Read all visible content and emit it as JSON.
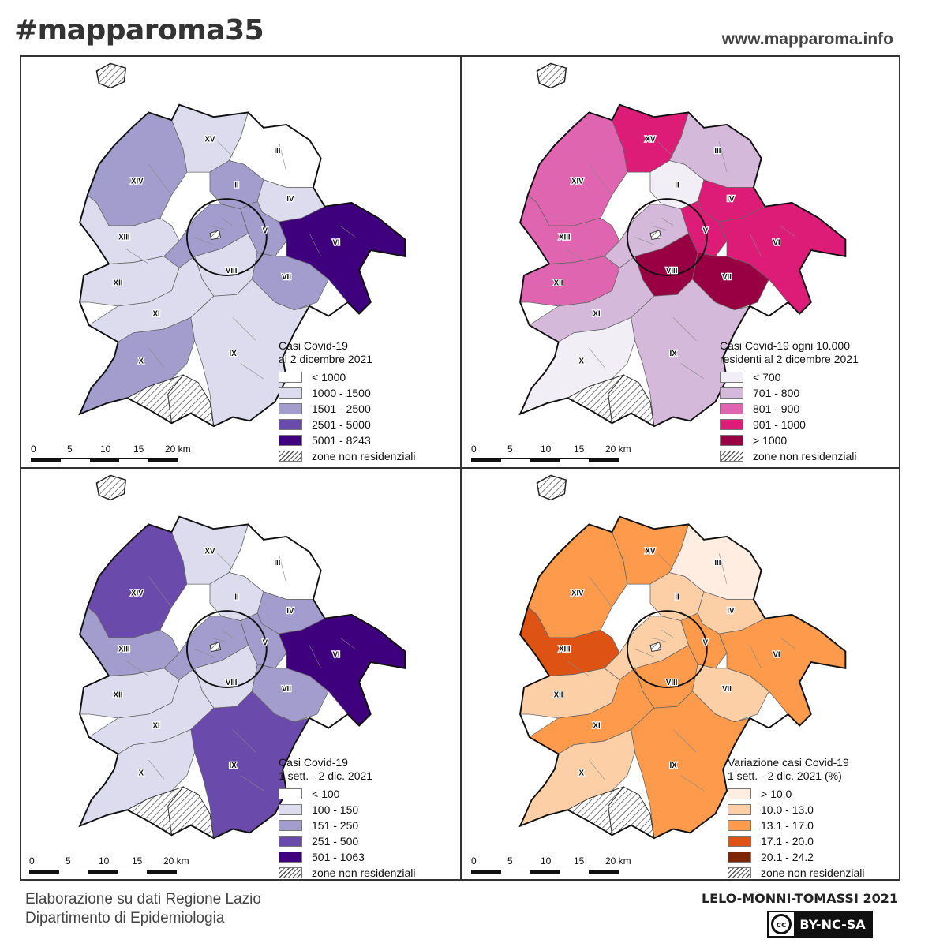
{
  "header": {
    "hashtag": "#mapparoma35",
    "website": "www.mapparoma.info"
  },
  "scale_bar": {
    "labels": [
      "0",
      "5",
      "10",
      "15",
      "20 km"
    ]
  },
  "hatch_label": "zone non residenziali",
  "municipi": [
    "II",
    "III",
    "IV",
    "V",
    "VI",
    "VII",
    "VIII",
    "IX",
    "X",
    "XI",
    "XII",
    "XIII",
    "XIV",
    "XV"
  ],
  "panels": [
    {
      "legend_title_1": "Casi Covid-19",
      "legend_title_2": "al 2 dicembre 2021",
      "classes": [
        {
          "label": "< 1000",
          "color": "#ffffff"
        },
        {
          "label": "1000 - 1500",
          "color": "#dcdcee"
        },
        {
          "label": "1501 - 2500",
          "color": "#a29dcc"
        },
        {
          "label": "2501 - 5000",
          "color": "#6a4aab"
        },
        {
          "label": "5001 - 8243",
          "color": "#3f007d"
        }
      ]
    },
    {
      "legend_title_1": "Casi Covid-19 ogni 10.000",
      "legend_title_2": "residenti al 2 dicembre 2021",
      "classes": [
        {
          "label": "< 700",
          "color": "#f1eef6"
        },
        {
          "label": "701 - 800",
          "color": "#d4b9da"
        },
        {
          "label": "801 - 900",
          "color": "#df65b0"
        },
        {
          "label": "901 - 1000",
          "color": "#dd1c77"
        },
        {
          "label": "> 1000",
          "color": "#980043"
        }
      ]
    },
    {
      "legend_title_1": "Casi Covid-19",
      "legend_title_2": "1 sett. - 2 dic. 2021",
      "classes": [
        {
          "label": "< 100",
          "color": "#ffffff"
        },
        {
          "label": "100 - 150",
          "color": "#dcdcee"
        },
        {
          "label": "151 - 250",
          "color": "#a29dcc"
        },
        {
          "label": "251 - 500",
          "color": "#6a4aab"
        },
        {
          "label": "501 - 1063",
          "color": "#3f007d"
        }
      ]
    },
    {
      "legend_title_1": "Variazione casi Covid-19",
      "legend_title_2": "1 sett. - 2 dic. 2021 (%)",
      "classes": [
        {
          "label": "> 10.0",
          "color": "#feede0"
        },
        {
          "label": "10.0 - 13.0",
          "color": "#fdcfa6"
        },
        {
          "label": "13.1 - 17.0",
          "color": "#fd9a4c"
        },
        {
          "label": "17.1 - 20.0",
          "color": "#de5313"
        },
        {
          "label": "20.1 - 24.2",
          "color": "#7f2704"
        }
      ]
    }
  ],
  "footer": {
    "source_line_1": "Elaborazione su dati Regione Lazio",
    "source_line_2": "Dipartimento di Epidemiologia",
    "credit": "LELO-MONNI-TOMASSI 2021",
    "cc_symbol": "cc",
    "license": "BY-NC-SA"
  }
}
